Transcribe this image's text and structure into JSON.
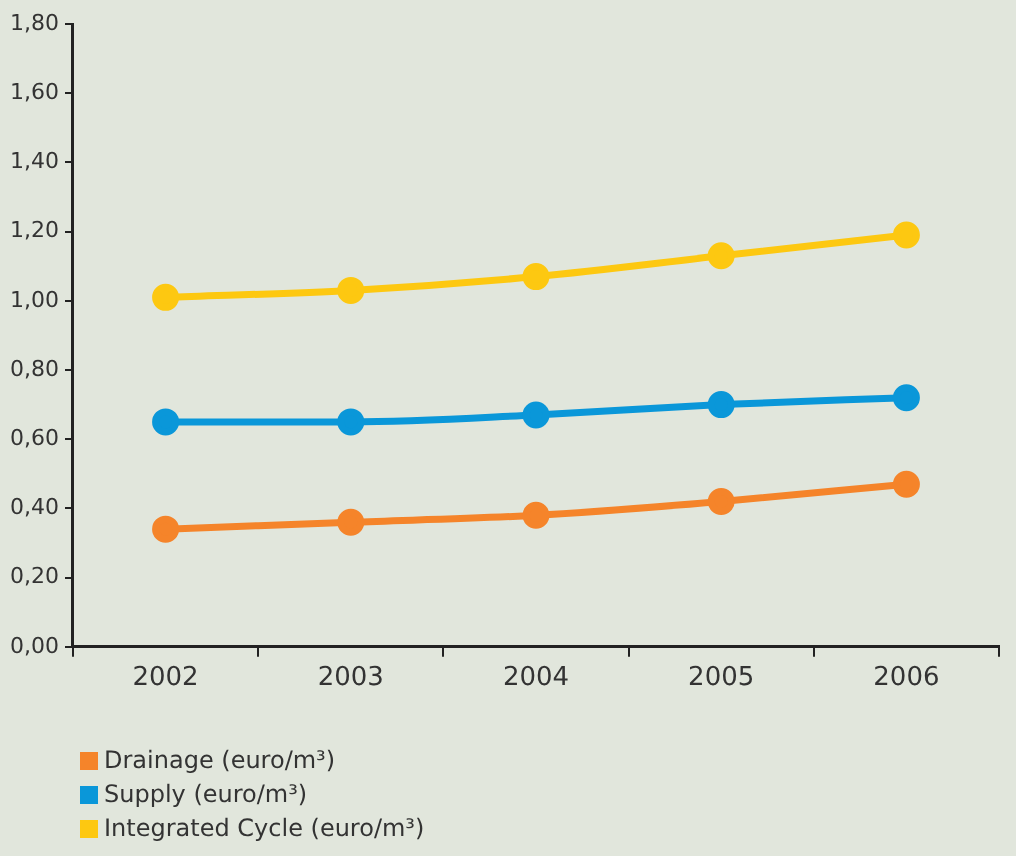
{
  "chart_data": {
    "type": "line",
    "categories": [
      "2002",
      "2003",
      "2004",
      "2005",
      "2006"
    ],
    "series": [
      {
        "name": "Drainage (euro/m³)",
        "color": "#f5842a",
        "values": [
          0.34,
          0.36,
          0.38,
          0.42,
          0.47
        ]
      },
      {
        "name": "Supply (euro/m³)",
        "color": "#0a97d9",
        "values": [
          0.65,
          0.65,
          0.67,
          0.7,
          0.72
        ]
      },
      {
        "name": "Integrated Cycle (euro/m³)",
        "color": "#fdc811",
        "values": [
          1.01,
          1.03,
          1.07,
          1.13,
          1.19
        ]
      }
    ],
    "ylim": [
      0,
      1.8
    ],
    "yticks": [
      {
        "value": 0,
        "label": "0,00"
      },
      {
        "value": 0.2,
        "label": "0,20"
      },
      {
        "value": 0.4,
        "label": "0,40"
      },
      {
        "value": 0.6,
        "label": "0,60"
      },
      {
        "value": 0.8,
        "label": "0,80"
      },
      {
        "value": 1,
        "label": "1,00"
      },
      {
        "value": 1.2,
        "label": "1,20"
      },
      {
        "value": 1.4,
        "label": "1,40"
      },
      {
        "value": 1.6,
        "label": "1,60"
      },
      {
        "value": 1.8,
        "label": "1,80"
      }
    ],
    "grid": false,
    "legend": "bottom left",
    "marker": "circle",
    "line_style": "solid"
  }
}
